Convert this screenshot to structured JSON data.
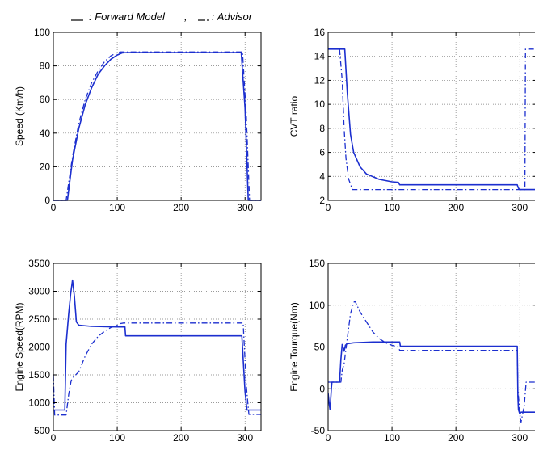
{
  "legend": {
    "forward_label": ": Forward Model",
    "separator": ",",
    "advisor_label": ": Advisor"
  },
  "colors": {
    "line": "#1c2fcf",
    "grid": "#7a7a7a",
    "axis": "#000000"
  },
  "chart_data": [
    {
      "type": "line",
      "ylabel": "Speed (Km/h)",
      "xlim": [
        0,
        325
      ],
      "ylim": [
        0,
        100
      ],
      "xticks": [
        0,
        100,
        200,
        300
      ],
      "yticks": [
        0,
        20,
        40,
        60,
        80,
        100
      ],
      "grid": true,
      "series": [
        {
          "name": "Forward Model",
          "style": "solid",
          "x": [
            0,
            22,
            30,
            40,
            50,
            60,
            70,
            80,
            90,
            100,
            108,
            115,
            200,
            294,
            300,
            305,
            325
          ],
          "y": [
            0,
            0,
            24,
            43,
            57,
            67,
            75,
            80,
            84,
            86.5,
            87.8,
            88,
            88,
            88,
            55,
            0,
            0
          ]
        },
        {
          "name": "Advisor",
          "style": "dashdot",
          "x": [
            0,
            20,
            30,
            40,
            50,
            60,
            70,
            80,
            90,
            100,
            105,
            200,
            296,
            302,
            307,
            325
          ],
          "y": [
            0,
            0,
            26,
            46,
            60,
            70,
            77,
            82.5,
            86,
            88,
            88.3,
            88.3,
            88.3,
            50,
            0,
            0
          ]
        }
      ]
    },
    {
      "type": "line",
      "ylabel": "CVT ratio",
      "xlim": [
        0,
        325
      ],
      "ylim": [
        2,
        16
      ],
      "xticks": [
        0,
        100,
        200,
        300
      ],
      "yticks": [
        2,
        4,
        6,
        8,
        10,
        12,
        14,
        16
      ],
      "grid": true,
      "series": [
        {
          "name": "Forward Model",
          "style": "solid",
          "x": [
            0,
            26,
            30,
            35,
            40,
            50,
            60,
            80,
            100,
            110,
            112,
            200,
            296,
            298,
            300,
            325
          ],
          "y": [
            14.6,
            14.6,
            11,
            7.5,
            6,
            4.8,
            4.2,
            3.75,
            3.55,
            3.5,
            3.3,
            3.3,
            3.3,
            3.0,
            2.9,
            2.9
          ]
        },
        {
          "name": "Advisor",
          "style": "dashdot",
          "x": [
            0,
            18,
            22,
            25,
            28,
            32,
            38,
            200,
            308,
            309,
            325
          ],
          "y": [
            14.6,
            14.6,
            12,
            8,
            5.5,
            3.8,
            2.9,
            2.9,
            2.9,
            14.6,
            14.6
          ]
        }
      ]
    },
    {
      "type": "line",
      "ylabel": "Engine Speed(RPM)",
      "xlim": [
        0,
        325
      ],
      "ylim": [
        500,
        3500
      ],
      "xticks": [
        0,
        100,
        200,
        300
      ],
      "yticks": [
        500,
        1000,
        1500,
        2000,
        2500,
        3000,
        3500
      ],
      "grid": true,
      "series": [
        {
          "name": "Forward Model",
          "style": "solid",
          "x": [
            0,
            18,
            20,
            24,
            27,
            30,
            33,
            36,
            40,
            60,
            100,
            112,
            113,
            200,
            295,
            300,
            303,
            325
          ],
          "y": [
            870,
            870,
            2050,
            2600,
            2950,
            3200,
            2900,
            2450,
            2390,
            2370,
            2360,
            2360,
            2200,
            2200,
            2200,
            1200,
            870,
            870
          ]
        },
        {
          "name": "Advisor",
          "style": "dashdot",
          "x": [
            0,
            2,
            4,
            20,
            24,
            28,
            32,
            35,
            40,
            50,
            60,
            70,
            80,
            90,
            100,
            105,
            110,
            120,
            200,
            297,
            302,
            306,
            325
          ],
          "y": [
            1500,
            780,
            780,
            780,
            1150,
            1400,
            1470,
            1500,
            1560,
            1840,
            2050,
            2190,
            2280,
            2350,
            2390,
            2420,
            2430,
            2430,
            2430,
            2430,
            1300,
            790,
            790
          ]
        }
      ]
    },
    {
      "type": "line",
      "ylabel": "Engine Tourque(Nm)",
      "xlim": [
        0,
        325
      ],
      "ylim": [
        -50,
        150
      ],
      "xticks": [
        0,
        100,
        200,
        300
      ],
      "yticks": [
        -50,
        0,
        50,
        100,
        150
      ],
      "grid": true,
      "series": [
        {
          "name": "Forward Model",
          "style": "solid",
          "x": [
            0,
            2,
            3,
            5,
            6,
            18,
            20,
            22,
            24,
            25,
            27,
            30,
            40,
            70,
            100,
            112,
            113,
            200,
            296,
            297,
            298,
            300,
            302,
            325
          ],
          "y": [
            -5,
            -20,
            -25,
            0,
            8,
            8,
            35,
            53,
            48,
            45,
            52,
            54,
            55,
            56,
            56,
            56,
            51,
            51,
            51,
            -10,
            -25,
            -30,
            -28,
            -28
          ]
        },
        {
          "name": "Advisor",
          "style": "dashdot",
          "x": [
            0,
            20,
            22,
            25,
            30,
            35,
            40,
            42,
            50,
            60,
            70,
            80,
            90,
            100,
            110,
            112,
            200,
            296,
            297,
            300,
            302,
            307,
            310,
            325
          ],
          "y": [
            8,
            8,
            22,
            30,
            60,
            90,
            103,
            105,
            92,
            80,
            68,
            60,
            55,
            52,
            50,
            46,
            46,
            46,
            0,
            -30,
            -40,
            -20,
            8,
            8
          ]
        }
      ]
    }
  ]
}
